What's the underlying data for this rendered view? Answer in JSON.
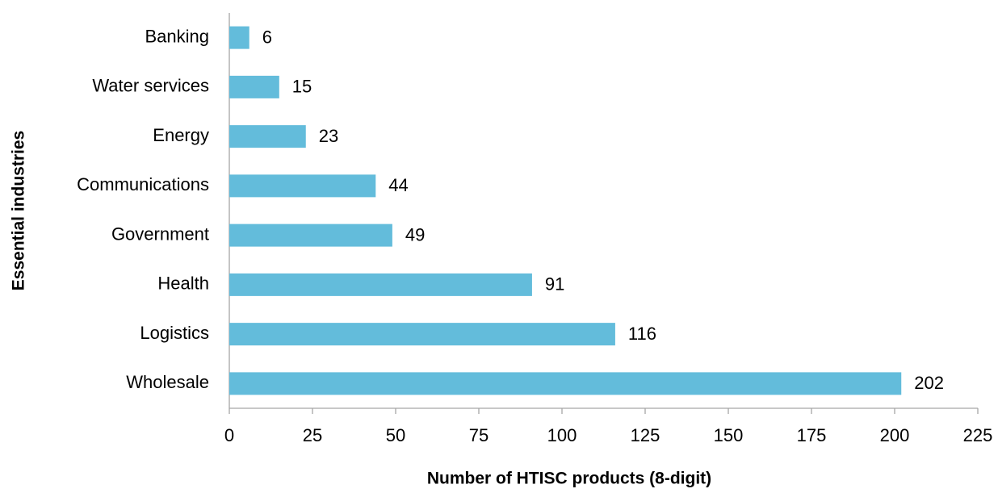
{
  "chart_data": {
    "type": "bar",
    "orientation": "horizontal",
    "x_label": "Number of HTISC products (8-digit)",
    "y_label": "Essential industries",
    "categories": [
      "Banking",
      "Water services",
      "Energy",
      "Communications",
      "Government",
      "Health",
      "Logistics",
      "Wholesale"
    ],
    "values": [
      6,
      15,
      23,
      44,
      49,
      91,
      116,
      202
    ],
    "color": "#63bcdb",
    "xlim": [
      0,
      225
    ],
    "xticks": [
      0,
      25,
      50,
      75,
      100,
      125,
      150,
      175,
      200,
      225
    ],
    "grid": false
  }
}
